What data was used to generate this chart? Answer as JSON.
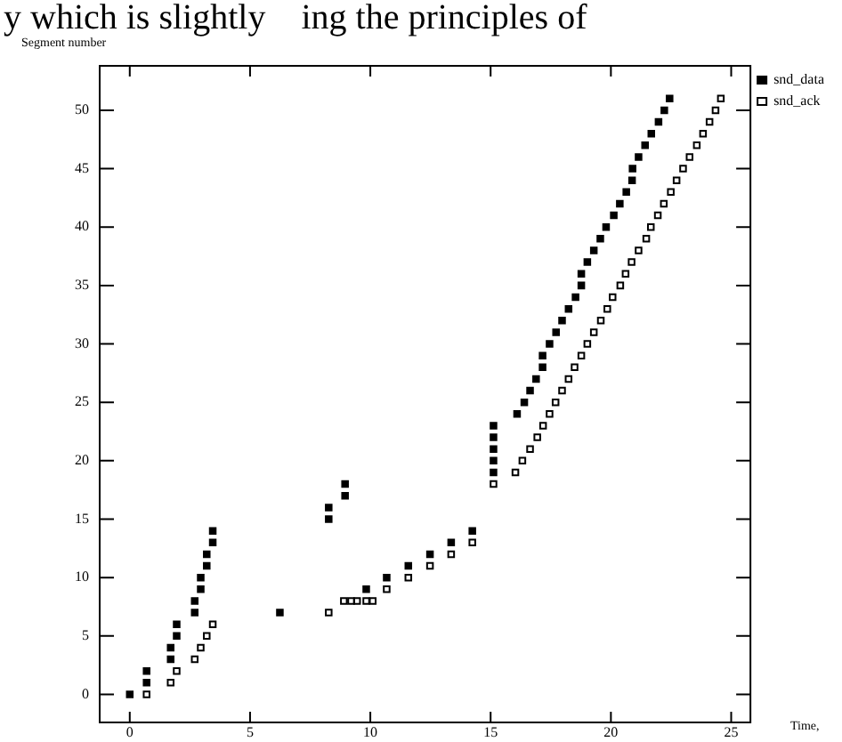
{
  "chart_data": {
    "type": "scatter",
    "ylabel": "Segment number",
    "xlabel": "Time,",
    "annotations": [
      "y which is slightly    ing the principles of"
    ],
    "xlim": [
      -1.25,
      25.8
    ],
    "ylim": [
      -2.4,
      53.8
    ],
    "xticks": [
      0,
      5,
      10,
      15,
      20,
      25
    ],
    "yticks": [
      0,
      5,
      10,
      15,
      20,
      25,
      30,
      35,
      40,
      45,
      50
    ],
    "grid": false,
    "legend": "top right",
    "marker": "square",
    "series": [
      {
        "name": "snd_data",
        "color": "#000000",
        "x": [
          0,
          0.7,
          0.7,
          1.7,
          1.7,
          1.95,
          1.95,
          2.7,
          2.7,
          2.95,
          2.95,
          3.2,
          3.2,
          3.45,
          3.45,
          6.24,
          8.27,
          8.27,
          8.95,
          8.95,
          9.83,
          10.68,
          11.58,
          12.48,
          13.36,
          14.24,
          15.12,
          15.12,
          15.12,
          15.12,
          15.12,
          16.1,
          16.4,
          16.64,
          16.89,
          17.16,
          17.16,
          17.45,
          17.72,
          17.97,
          18.24,
          18.53,
          18.77,
          18.77,
          19.02,
          19.29,
          19.56,
          19.8,
          20.12,
          20.37,
          20.64,
          20.88,
          20.9,
          21.15,
          21.42,
          21.68,
          21.98,
          22.22,
          22.44
        ],
        "values": [
          0,
          1,
          2,
          3,
          4,
          5,
          6,
          7,
          8,
          9,
          10,
          11,
          12,
          13,
          14,
          7,
          15,
          16,
          17,
          18,
          9,
          10,
          11,
          12,
          13,
          14,
          19,
          20,
          21,
          22,
          23,
          24,
          25,
          26,
          27,
          28,
          29,
          30,
          31,
          32,
          33,
          34,
          35,
          36,
          37,
          38,
          39,
          40,
          41,
          42,
          43,
          44,
          45,
          46,
          47,
          48,
          49,
          50,
          51
        ]
      },
      {
        "name": "snd_ack",
        "color": "#000000",
        "x": [
          0.7,
          1.7,
          1.95,
          2.7,
          2.95,
          3.2,
          3.45,
          8.27,
          8.9,
          9.2,
          9.45,
          9.83,
          10.1,
          10.68,
          11.58,
          12.48,
          13.36,
          14.24,
          15.12,
          16.03,
          16.32,
          16.64,
          16.94,
          17.18,
          17.45,
          17.7,
          17.97,
          18.24,
          18.49,
          18.77,
          19.02,
          19.29,
          19.58,
          19.85,
          20.07,
          20.39,
          20.61,
          20.86,
          21.15,
          21.47,
          21.66,
          21.95,
          22.2,
          22.49,
          22.73,
          23.0,
          23.27,
          23.57,
          23.83,
          24.1,
          24.35,
          24.57
        ],
        "values": [
          0,
          1,
          2,
          3,
          4,
          5,
          6,
          7,
          8,
          8,
          8,
          8,
          8,
          9,
          10,
          11,
          12,
          13,
          18,
          19,
          20,
          21,
          22,
          23,
          24,
          25,
          26,
          27,
          28,
          29,
          30,
          31,
          32,
          33,
          34,
          35,
          36,
          37,
          38,
          39,
          40,
          41,
          42,
          43,
          44,
          45,
          46,
          47,
          48,
          49,
          50,
          51
        ]
      }
    ]
  }
}
